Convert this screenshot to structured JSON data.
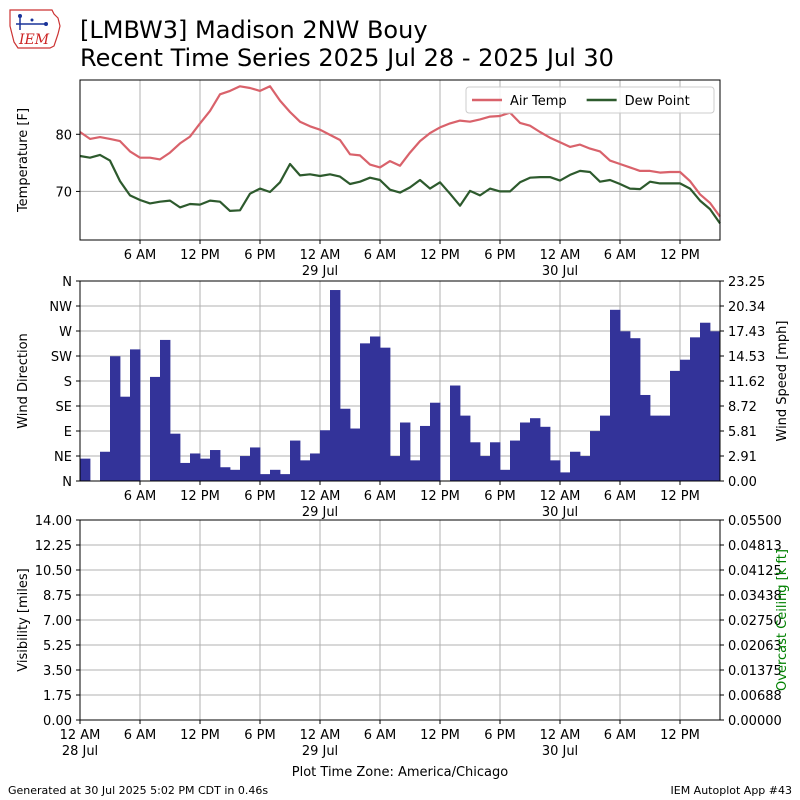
{
  "header": {
    "logo_text": "IEM",
    "title_line1": "[LMBW3] Madison 2NW Bouy",
    "title_line2": "Recent Time Series 2025 Jul 28 - 2025 Jul 30"
  },
  "footer": {
    "generated": "Generated at 30 Jul 2025 5:02 PM CDT in 0.46s",
    "app": "IEM Autoplot App #43"
  },
  "chart_data": [
    {
      "type": "line",
      "x_axis": "hours since 28 Jul 12 AM (America/Chicago)",
      "xlim": [
        0,
        64
      ],
      "ylabel": "Temperature [F]",
      "ylim": [
        61.5,
        89.5
      ],
      "yticks": [
        70,
        80
      ],
      "xtick_hours": [
        6,
        12,
        18,
        24,
        30,
        36,
        42,
        48,
        54,
        60
      ],
      "xtick_labels": [
        "6 AM",
        "12 PM",
        "6 PM",
        "12 AM",
        "6 AM",
        "12 PM",
        "6 PM",
        "12 AM",
        "6 AM",
        "12 PM"
      ],
      "date_labels": [
        {
          "hour": 24,
          "label": "29 Jul"
        },
        {
          "hour": 48,
          "label": "30 Jul"
        }
      ],
      "grid": true,
      "legend_position": "top-right",
      "series": [
        {
          "name": "Air Temp",
          "color": "#d9626b",
          "x": [
            0,
            1,
            2,
            3,
            4,
            5,
            6,
            7,
            8,
            9,
            10,
            11,
            12,
            13,
            14,
            15,
            16,
            17,
            18,
            19,
            20,
            21,
            22,
            23,
            24,
            25,
            26,
            27,
            28,
            29,
            30,
            31,
            32,
            33,
            34,
            35,
            36,
            37,
            38,
            39,
            40,
            41,
            42,
            43,
            44,
            45,
            46,
            47,
            48,
            49,
            50,
            51,
            52,
            53,
            54,
            55,
            56,
            57,
            58,
            59,
            60,
            61,
            62,
            63,
            64
          ],
          "values": [
            80.4,
            79.2,
            79.5,
            79.2,
            78.8,
            77.0,
            75.9,
            75.9,
            75.6,
            76.8,
            78.4,
            79.6,
            81.9,
            84.1,
            87.0,
            87.6,
            88.4,
            88.1,
            87.6,
            88.4,
            85.9,
            83.9,
            82.2,
            81.4,
            80.8,
            79.9,
            79.0,
            76.5,
            76.3,
            74.7,
            74.2,
            75.3,
            74.5,
            76.8,
            78.8,
            80.2,
            81.2,
            81.9,
            82.4,
            82.2,
            82.6,
            83.1,
            83.2,
            83.8,
            82.0,
            81.5,
            80.4,
            79.4,
            78.6,
            77.8,
            78.2,
            77.5,
            77.0,
            75.4,
            74.8,
            74.2,
            73.6,
            73.6,
            73.3,
            73.4,
            73.4,
            71.8,
            69.5,
            68.0,
            65.6
          ]
        },
        {
          "name": "Dew Point",
          "color": "#2d5a2d",
          "x": [
            0,
            1,
            2,
            3,
            4,
            5,
            6,
            7,
            8,
            9,
            10,
            11,
            12,
            13,
            14,
            15,
            16,
            17,
            18,
            19,
            20,
            21,
            22,
            23,
            24,
            25,
            26,
            27,
            28,
            29,
            30,
            31,
            32,
            33,
            34,
            35,
            36,
            37,
            38,
            39,
            40,
            41,
            42,
            43,
            44,
            45,
            46,
            47,
            48,
            49,
            50,
            51,
            52,
            53,
            54,
            55,
            56,
            57,
            58,
            59,
            60,
            61,
            62,
            63,
            64
          ],
          "values": [
            76.2,
            75.9,
            76.4,
            75.4,
            71.8,
            69.3,
            68.5,
            67.9,
            68.2,
            68.4,
            67.2,
            67.8,
            67.7,
            68.4,
            68.2,
            66.6,
            66.7,
            69.6,
            70.5,
            69.9,
            71.6,
            74.8,
            72.8,
            73.0,
            72.7,
            73.0,
            72.6,
            71.3,
            71.7,
            72.4,
            72.0,
            70.3,
            69.8,
            70.7,
            72.0,
            70.5,
            71.6,
            69.6,
            67.5,
            70.1,
            69.3,
            70.5,
            70.0,
            70.0,
            71.6,
            72.4,
            72.5,
            72.5,
            71.9,
            72.9,
            73.6,
            73.4,
            71.7,
            72.0,
            71.3,
            70.5,
            70.4,
            71.7,
            71.4,
            71.4,
            71.4,
            70.5,
            68.4,
            66.9,
            64.4
          ]
        }
      ]
    },
    {
      "type": "bar",
      "x_axis": "hours since 28 Jul 12 AM (America/Chicago)",
      "xlim": [
        0,
        64
      ],
      "ylabel": "Wind Direction",
      "ylabel_right": "Wind Speed [mph]",
      "ylim": [
        0,
        23.25
      ],
      "left_tick_labels": [
        "N",
        "NE",
        "E",
        "SE",
        "S",
        "SW",
        "W",
        "NW",
        "N"
      ],
      "right_tick_labels": [
        "0.00",
        "2.91",
        "5.81",
        "8.72",
        "11.62",
        "14.53",
        "17.43",
        "20.34",
        "23.25"
      ],
      "xtick_hours": [
        6,
        12,
        18,
        24,
        30,
        36,
        42,
        48,
        54,
        60
      ],
      "xtick_labels": [
        "6 AM",
        "12 PM",
        "6 PM",
        "12 AM",
        "6 AM",
        "12 PM",
        "6 PM",
        "12 AM",
        "6 AM",
        "12 PM"
      ],
      "date_labels": [
        {
          "hour": 24,
          "label": "29 Jul"
        },
        {
          "hour": 48,
          "label": "30 Jul"
        }
      ],
      "grid": true,
      "color": "#333399",
      "series": [
        {
          "name": "Wind Speed",
          "x": [
            0,
            1,
            2,
            3,
            4,
            5,
            6,
            7,
            8,
            9,
            10,
            11,
            12,
            13,
            14,
            15,
            16,
            17,
            18,
            19,
            20,
            21,
            22,
            23,
            24,
            25,
            26,
            27,
            28,
            29,
            30,
            31,
            32,
            33,
            34,
            35,
            36,
            37,
            38,
            39,
            40,
            41,
            42,
            43,
            44,
            45,
            46,
            47,
            48,
            49,
            50,
            51,
            52,
            53,
            54,
            55,
            56,
            57,
            58,
            59,
            60,
            61,
            62,
            63
          ],
          "values": [
            2.6,
            0.0,
            3.4,
            14.5,
            9.8,
            15.3,
            0.0,
            12.1,
            16.4,
            5.5,
            2.1,
            3.2,
            2.6,
            3.6,
            1.6,
            1.3,
            2.9,
            3.9,
            0.8,
            1.3,
            0.8,
            4.7,
            2.4,
            3.2,
            5.9,
            22.2,
            8.4,
            6.1,
            16.0,
            16.8,
            15.5,
            2.9,
            6.8,
            2.4,
            6.4,
            9.1,
            0.0,
            11.1,
            7.6,
            4.5,
            2.9,
            4.5,
            1.3,
            4.7,
            6.8,
            7.3,
            6.3,
            2.4,
            1.0,
            3.4,
            2.9,
            5.8,
            7.6,
            19.9,
            17.4,
            16.6,
            10.0,
            7.6,
            7.6,
            12.8,
            14.1,
            16.7,
            18.4,
            17.4
          ]
        }
      ]
    },
    {
      "type": "line",
      "x_axis": "hours since 28 Jul 12 AM (America/Chicago)",
      "xlim": [
        0,
        64
      ],
      "ylabel": "Visibility [miles]",
      "ylabel_right": "Overcast Ceiling [k ft]",
      "ylabel_right_color": "#008000",
      "ylim": [
        0,
        14
      ],
      "ylim_right": [
        0,
        0.055
      ],
      "left_tick_labels": [
        "0.00",
        "1.75",
        "3.50",
        "5.25",
        "7.00",
        "8.75",
        "10.50",
        "12.25",
        "14.00"
      ],
      "right_tick_labels": [
        "0.00000",
        "0.00688",
        "0.01375",
        "0.02063",
        "0.02750",
        "0.03438",
        "0.04125",
        "0.04813",
        "0.05500"
      ],
      "xtick_hours": [
        0,
        6,
        12,
        18,
        24,
        30,
        36,
        42,
        48,
        54,
        60
      ],
      "xtick_labels": [
        "12 AM",
        "6 AM",
        "12 PM",
        "6 PM",
        "12 AM",
        "6 AM",
        "12 PM",
        "6 PM",
        "12 AM",
        "6 AM",
        "12 PM"
      ],
      "date_labels": [
        {
          "hour": 0,
          "label": "28 Jul"
        },
        {
          "hour": 24,
          "label": "29 Jul"
        },
        {
          "hour": 48,
          "label": "30 Jul"
        }
      ],
      "xlabel": "Plot Time Zone: America/Chicago",
      "grid": true,
      "series": []
    }
  ]
}
